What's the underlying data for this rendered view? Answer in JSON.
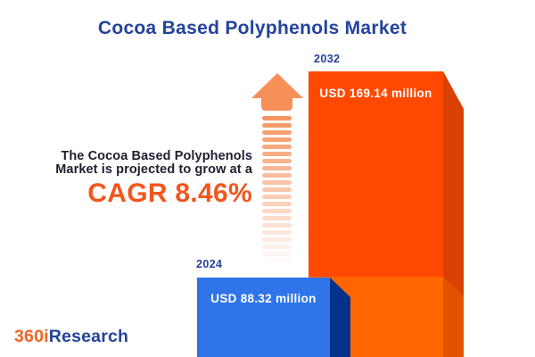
{
  "header": {
    "title": "Cocoa Based Polyphenols Market"
  },
  "tagline": {
    "line1": "The Cocoa Based Polyphenols",
    "line2": "Market is projected to grow at a",
    "cagr": "CAGR 8.46%"
  },
  "bars": {
    "y2024": {
      "year": "2024",
      "value_label": "USD 88.32 million"
    },
    "y2032": {
      "year": "2032",
      "value_label": "USD 169.14 million"
    }
  },
  "logo": {
    "prefix": "360i",
    "suffix": "Research"
  },
  "colors": {
    "title_blue": "#24439B",
    "accent_orange": "#F3551B",
    "bar_2032_face": "#FF4900",
    "bar_2032_side": "#D84004",
    "bar_2032_base_face": "#FF6600",
    "bar_2032_base_side": "#E05400",
    "bar_2024_face": "#2F74E8",
    "bar_2024_side": "#04318A",
    "arrow_orange": "#F78F58",
    "text_dark": "#1E1E30"
  },
  "chart_data": {
    "type": "bar",
    "title": "Cocoa Based Polyphenols Market",
    "categories": [
      "2024",
      "2032"
    ],
    "values": [
      88.32,
      169.14
    ],
    "unit": "USD million",
    "value_labels": [
      "USD 88.32 million",
      "USD 169.14 million"
    ],
    "cagr_percent": 8.46,
    "bar_colors": [
      "#2F74E8",
      "#FF4900"
    ],
    "orientation": "vertical",
    "legend": false,
    "grid": false,
    "axes": false
  }
}
